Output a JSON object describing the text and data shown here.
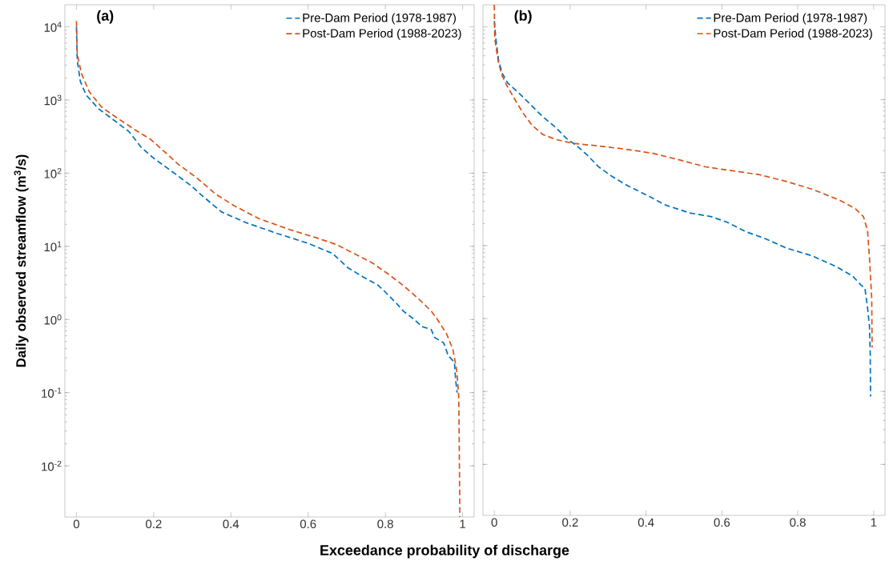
{
  "chart_data": [
    {
      "type": "line",
      "title": "(a)",
      "xlabel": "Exceedance probability of discharge",
      "ylabel": "Daily observed streamflow (m$^{3}$/s)",
      "log": true,
      "legend": "top right",
      "line_style": "dashed",
      "xlim": [
        -0.03,
        1.03
      ],
      "ylim": [
        0.002,
        20000
      ],
      "xticks": [
        0,
        0.2,
        0.4,
        0.6,
        0.8,
        1
      ],
      "yticks": [
        {
          "value": 0.01,
          "label": "10$^{-2}$"
        },
        {
          "value": 0.1,
          "label": "10$^{-1}$"
        },
        {
          "value": 1,
          "label": "10$^{0}$"
        },
        {
          "value": 10,
          "label": "10$^{1}$"
        },
        {
          "value": 100,
          "label": "10$^{2}$"
        },
        {
          "value": 1000,
          "label": "10$^{3}$"
        },
        {
          "value": 10000,
          "label": "10$^{4}$"
        }
      ],
      "series": [
        {
          "name": "Pre-Dam Period (1978-1987)",
          "color": "#0072bd",
          "x": [
            0,
            0.002,
            0.01,
            0.025,
            0.057,
            0.089,
            0.136,
            0.168,
            0.2,
            0.248,
            0.296,
            0.328,
            0.376,
            0.44,
            0.52,
            0.6,
            0.663,
            0.703,
            0.743,
            0.779,
            0.799,
            0.827,
            0.847,
            0.875,
            0.895,
            0.919,
            0.927,
            0.951,
            0.963,
            0.979,
            0.982,
            0.986
          ],
          "values": [
            10000,
            3500,
            1800,
            1170,
            760,
            570,
            370,
            225,
            160,
            105,
            68,
            48,
            29.5,
            21,
            15,
            11,
            8,
            5.1,
            3.8,
            3,
            2.4,
            1.7,
            1.3,
            1,
            0.8,
            0.73,
            0.57,
            0.48,
            0.32,
            0.26,
            0.15,
            0.1
          ]
        },
        {
          "name": "Post-Dam Period (1988-2023)",
          "color": "#d95319",
          "x": [
            0,
            0.002,
            0.013,
            0.033,
            0.065,
            0.105,
            0.152,
            0.192,
            0.224,
            0.264,
            0.312,
            0.36,
            0.408,
            0.472,
            0.551,
            0.623,
            0.671,
            0.727,
            0.767,
            0.807,
            0.847,
            0.887,
            0.919,
            0.935,
            0.959,
            0.975,
            0.985,
            0.99,
            0.991,
            0.992,
            0.993
          ],
          "values": [
            12000,
            4200,
            2300,
            1300,
            800,
            570,
            390,
            290,
            205,
            132,
            86,
            52,
            36,
            24,
            17,
            13,
            10.7,
            7.6,
            5.9,
            4.2,
            2.9,
            1.9,
            1.3,
            1,
            0.63,
            0.39,
            0.2,
            0.091,
            0.035,
            0.0083,
            0.002
          ]
        }
      ]
    },
    {
      "type": "line",
      "title": "(b)",
      "log": true,
      "legend": "top right",
      "line_style": "dashed",
      "tick_labels": "x",
      "xlim": [
        -0.03,
        1.03
      ],
      "ylim": [
        0.002,
        20000
      ],
      "xticks": [
        0,
        0.2,
        0.4,
        0.6,
        0.8,
        1
      ],
      "yticks": [
        {
          "value": 0.01,
          "label": null
        },
        {
          "value": 0.1,
          "label": null
        },
        {
          "value": 1,
          "label": null
        },
        {
          "value": 10,
          "label": null
        },
        {
          "value": 100,
          "label": null
        },
        {
          "value": 1000,
          "label": null
        },
        {
          "value": 10000,
          "label": null
        }
      ],
      "series": [
        {
          "name": "Pre-Dam Period (1978-1987)",
          "color": "#0072bd",
          "x": [
            0,
            0.004,
            0.011,
            0.021,
            0.035,
            0.071,
            0.099,
            0.127,
            0.162,
            0.19,
            0.219,
            0.247,
            0.275,
            0.31,
            0.345,
            0.409,
            0.451,
            0.515,
            0.571,
            0.613,
            0.663,
            0.712,
            0.769,
            0.839,
            0.903,
            0.945,
            0.966,
            0.977,
            0.984,
            0.989,
            0.991,
            0.992
          ],
          "values": [
            12000,
            6900,
            3500,
            2300,
            1700,
            1150,
            820,
            590,
            415,
            295,
            230,
            170,
            120,
            89,
            69,
            47,
            36,
            28,
            25,
            21,
            15.5,
            12.6,
            9.3,
            7.2,
            5.1,
            3.8,
            2.9,
            2.6,
            1.4,
            0.79,
            0.34,
            0.085
          ]
        },
        {
          "name": "Post-Dam Period (1988-2023)",
          "color": "#d95319",
          "x": [
            0,
            0.001,
            0.011,
            0.021,
            0.035,
            0.056,
            0.078,
            0.099,
            0.127,
            0.162,
            0.205,
            0.275,
            0.345,
            0.416,
            0.487,
            0.557,
            0.628,
            0.698,
            0.769,
            0.839,
            0.91,
            0.952,
            0.973,
            0.984,
            0.989,
            0.993,
            0.995,
            0.996
          ],
          "values": [
            20000,
            6900,
            3200,
            2100,
            1500,
            970,
            630,
            450,
            335,
            285,
            253,
            232,
            210,
            185,
            150,
            120,
            106,
            94,
            76,
            59,
            42,
            32,
            25,
            16,
            6.9,
            2.9,
            1.9,
            0.4
          ]
        }
      ]
    }
  ]
}
